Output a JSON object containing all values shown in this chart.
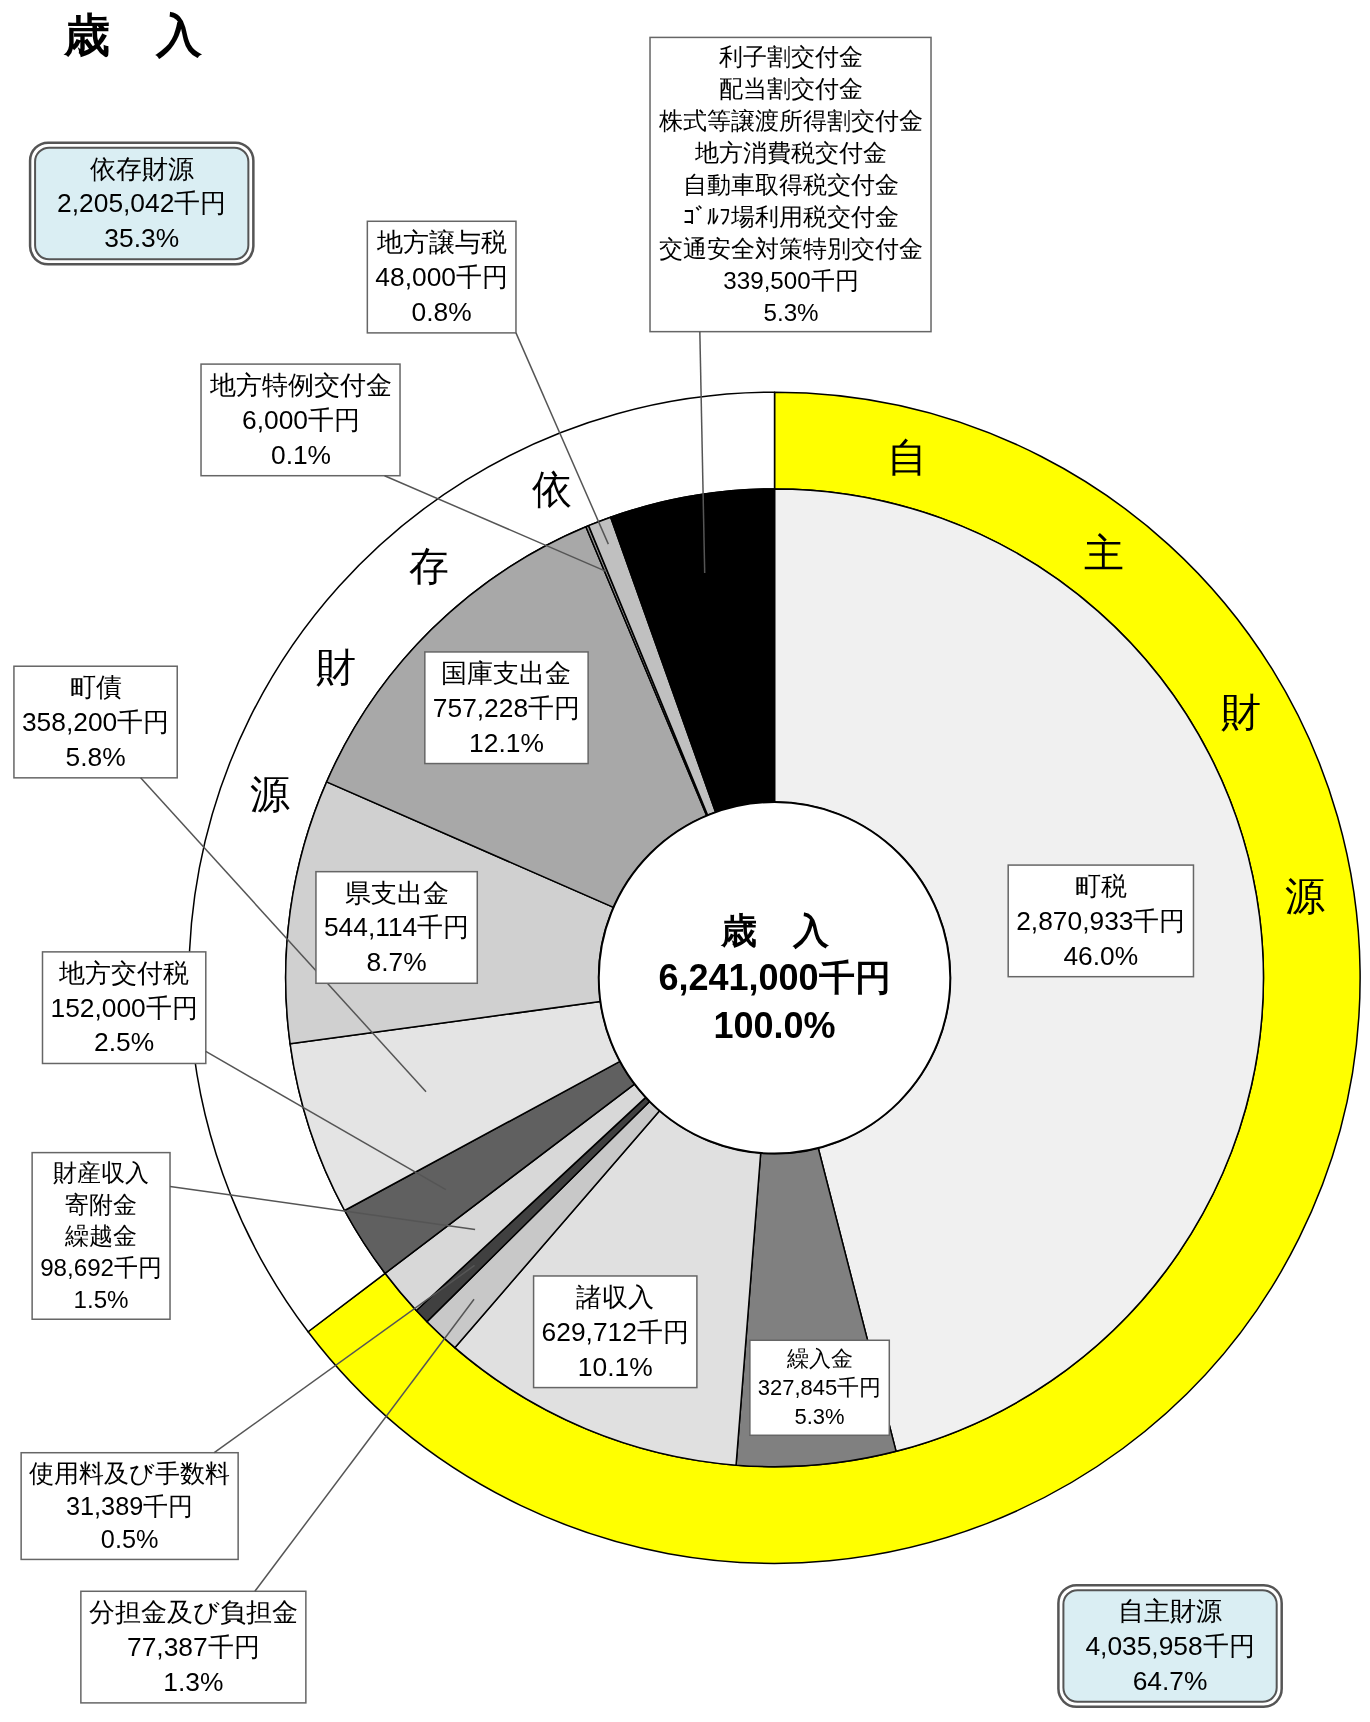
{
  "chart_data": [
    {
      "type": "donut",
      "title": "歳　入",
      "annotations": [
        "歳　入",
        "6,241,000千円",
        "100.0%"
      ],
      "categories": [
        "町税",
        "繰入金",
        "諸収入",
        "分担金及び負担金",
        "使用料及び手数料",
        "財産収入寄附金繰越金",
        "地方交付税",
        "町債",
        "県支出金",
        "国庫支出金",
        "地方特例交付金",
        "地方譲与税",
        "利子割交付金配当割交付金株式等譲渡所得割交付金地方消費税交付金自動車取得税交付金ｺﾞﾙﾌ場利用税交付金交通安全対策特別交付金"
      ],
      "values": [
        2870933,
        327845,
        629712,
        77387,
        31389,
        98692,
        152000,
        358200,
        544114,
        757228,
        6000,
        48000,
        339500
      ],
      "colors": [
        "#f0f0f0",
        "#808080",
        "#e0e0e0",
        "#c8c8c8",
        "#404040",
        "#d8d8d8",
        "#606060",
        "#e4e4e4",
        "#d0d0d0",
        "#a8a8a8",
        "#909090",
        "#c0c0c0",
        "#000000"
      ],
      "value_labels": [
        "2,870,933千円\n46.0%",
        "327,845千円\n5.3%",
        "629,712千円\n10.1%",
        "77,387千円\n1.3%",
        "31,389千円\n0.5%",
        "98,692千円\n1.5%",
        "152,000千円\n2.5%",
        "358,200千円\n5.8%",
        "544,114千円\n8.7%",
        "757,228千円\n12.1%",
        "6,000千円\n0.1%",
        "48,000千円\n0.8%",
        "339,500千円\n5.3%"
      ]
    },
    {
      "type": "donut",
      "categories": [
        "自主財源",
        "依存財源"
      ],
      "annotations": [
        "自",
        "主",
        "財",
        "源",
        "依",
        "存",
        "財",
        "源"
      ],
      "values": [
        4035958,
        2205042
      ],
      "colors": [
        "#ffff00",
        "#ffffff"
      ],
      "value_labels": [
        "4,035,958千円\n64.7%",
        "2,205,042千円\n35.3%"
      ]
    }
  ]
}
